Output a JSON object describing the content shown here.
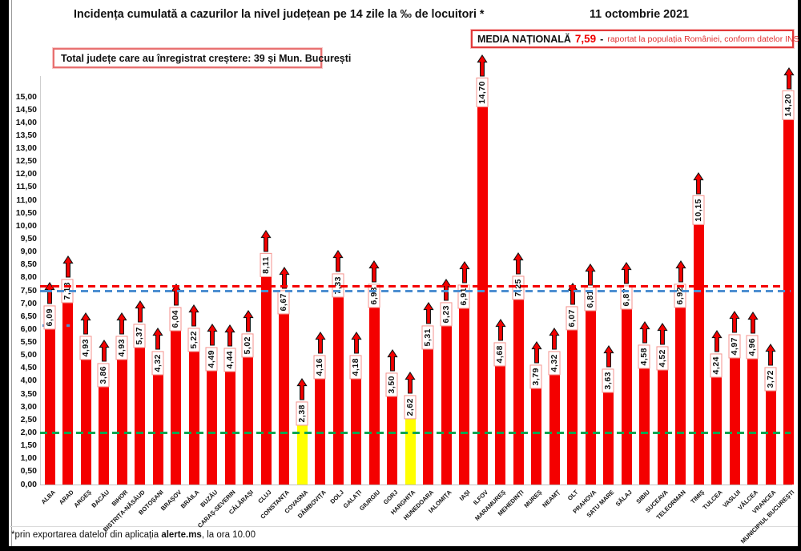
{
  "header": {
    "title": "Incidența cumulată a cazurilor la nivel județean pe 14 zile la ‰ de locuitori *",
    "date": "11 octombrie 2021"
  },
  "national_average_box": {
    "label": "MEDIA NAȚIONALĂ",
    "value": "7,59",
    "separator": "-",
    "note": "raportat la populația României, conform datelor INS"
  },
  "growth_box": {
    "text": "Total județe care au înregistrat creștere:  39 și Mun. București"
  },
  "footer": {
    "prefix": "*prin exportarea datelor din aplicația ",
    "app_name": "alerte.ms",
    "suffix": ", la ora 10.00"
  },
  "chart_data": {
    "type": "bar",
    "title": "Incidența cumulată a cazurilor la nivel județean pe 14 zile la ‰ de locuitori",
    "unit": "‰ de locuitori",
    "categories": [
      "ALBA",
      "ARAD",
      "ARGEȘ",
      "BACĂU",
      "BIHOR",
      "BISTRIȚA-NĂSĂUD",
      "BOTOȘANI",
      "BRAȘOV",
      "BRĂILA",
      "BUZĂU",
      "CARAȘ-SEVERIN",
      "CĂLĂRAȘI",
      "CLUJ",
      "CONSTANȚA",
      "COVASNA",
      "DÂMBOVIȚA",
      "DOLJ",
      "GALAȚI",
      "GIURGIU",
      "GORJ",
      "HARGHITA",
      "HUNEDOARA",
      "IALOMIȚA",
      "IAȘI",
      "ILFOV",
      "MARAMUREȘ",
      "MEHEDINȚI",
      "MUREȘ",
      "NEAMȚ",
      "OLT",
      "PRAHOVA",
      "SATU MARE",
      "SĂLAJ",
      "SIBIU",
      "SUCEAVA",
      "TELEORMAN",
      "TIMIȘ",
      "TULCEA",
      "VASLUI",
      "VÂLCEA",
      "VRANCEA",
      "MUNICIPIUL BUCUREȘTI"
    ],
    "values": [
      6.09,
      7.13,
      4.93,
      3.86,
      4.93,
      5.37,
      4.32,
      6.04,
      5.22,
      4.49,
      4.44,
      5.02,
      8.11,
      6.67,
      2.38,
      4.16,
      7.33,
      4.18,
      6.93,
      3.5,
      2.62,
      5.31,
      6.23,
      6.91,
      14.7,
      4.68,
      7.25,
      3.79,
      4.32,
      6.07,
      6.81,
      3.63,
      6.87,
      4.58,
      4.52,
      6.92,
      10.15,
      4.24,
      4.97,
      4.96,
      3.72,
      14.2
    ],
    "highlighted_categories": [
      "COVASNA",
      "HARGHITA"
    ],
    "bar_color": "#f40000",
    "highlight_color": "#ffff00",
    "value_label_decimal": "comma",
    "increase_arrows": true,
    "ylim": [
      0,
      15
    ],
    "ytick_step": 0.5,
    "grid": false,
    "legend_position": "none",
    "reference_lines": [
      {
        "name": "media-nationala",
        "value": 7.59,
        "color": "#f40000",
        "style": "dashed"
      },
      {
        "name": "reference-blue",
        "value": 7.5,
        "color": "#4d8fd1",
        "style": "dashed"
      },
      {
        "name": "reference-green",
        "value": 2.0,
        "color": "#00a651",
        "style": "dashed"
      }
    ]
  }
}
